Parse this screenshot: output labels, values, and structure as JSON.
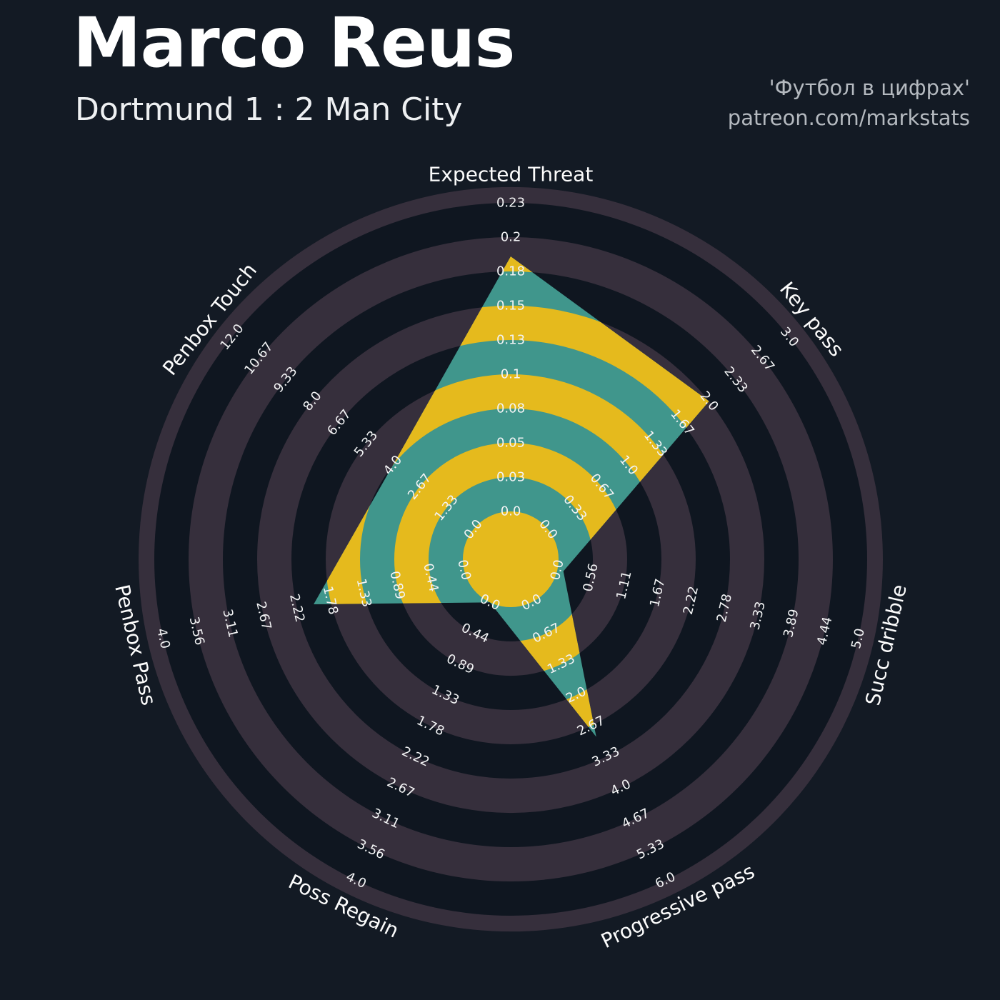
{
  "header": {
    "title": "Marco Reus",
    "subtitle": "Dortmund 1 : 2 Man City",
    "credit_line1": "'Футбол в цифрах'",
    "credit_line2": "patreon.com/markstats"
  },
  "chart_data": {
    "type": "radar",
    "player": "Marco Reus",
    "match": "Dortmund 1 : 2 Man City",
    "layout": {
      "start_axis": "top",
      "direction": "clockwise",
      "num_rings": 10,
      "grid": "concentric-circles",
      "legend_position": "none"
    },
    "params": [
      {
        "label": "Expected Threat",
        "max": 0.23,
        "value": 0.19,
        "ticks": [
          "0.0",
          "0.03",
          "0.05",
          "0.08",
          "0.1",
          "0.13",
          "0.15",
          "0.18",
          "0.2",
          "0.23"
        ]
      },
      {
        "label": "Key pass",
        "max": 3.0,
        "value": 2.0,
        "ticks": [
          "0.0",
          "0.33",
          "0.67",
          "1.0",
          "1.33",
          "1.67",
          "2.0",
          "2.33",
          "2.67",
          "3.0"
        ]
      },
      {
        "label": "Succ dribble",
        "max": 5.0,
        "value": 0.1,
        "ticks": [
          "0.0",
          "0.56",
          "1.11",
          "1.67",
          "2.22",
          "2.78",
          "3.33",
          "3.89",
          "4.44",
          "5.0"
        ]
      },
      {
        "label": "Progressive pass",
        "max": 6.0,
        "value": 2.9,
        "ticks": [
          "0.0",
          "0.67",
          "1.33",
          "2.0",
          "2.67",
          "3.33",
          "4.0",
          "4.67",
          "5.33",
          "6.0"
        ]
      },
      {
        "label": "Poss Regain",
        "max": 4.0,
        "value": 0.0,
        "ticks": [
          "0.0",
          "0.44",
          "0.89",
          "1.33",
          "1.78",
          "2.22",
          "2.67",
          "3.11",
          "3.56",
          "4.0"
        ]
      },
      {
        "label": "Penbox Pass",
        "max": 4.0,
        "value": 2.0,
        "ticks": [
          "0.0",
          "0.44",
          "0.89",
          "1.33",
          "1.78",
          "2.22",
          "2.67",
          "3.11",
          "3.56",
          "4.0"
        ]
      },
      {
        "label": "Penbox Touch",
        "max": 12.0,
        "value": 4.0,
        "ticks": [
          "0.0",
          "1.33",
          "2.67",
          "4.0",
          "5.33",
          "6.67",
          "8.0",
          "9.33",
          "10.67",
          "12.0"
        ]
      }
    ],
    "colors": {
      "background": "#131a24",
      "ring_dark": "#0f1620",
      "ring_light": "#362f3c",
      "radar_fill": "#40968c",
      "radar_ring": "#e5ba1d",
      "tick_text": "#f2f3f4",
      "title_text": "#ffffff",
      "credit_text": "#b4b9bf"
    }
  }
}
